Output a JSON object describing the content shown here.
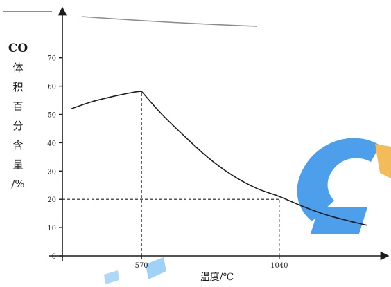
{
  "chart_data": {
    "type": "line",
    "ylabel_lines": [
      "CO",
      "体",
      "积",
      "百",
      "分",
      "含",
      "量",
      "/%"
    ],
    "xlabel": "温度/℃",
    "ylim": [
      0,
      80
    ],
    "xlim": [
      300,
      1400
    ],
    "y_ticks": [
      {
        "value": 0,
        "label": "0"
      },
      {
        "value": 10,
        "label": "10"
      },
      {
        "value": 20,
        "label": "20"
      },
      {
        "value": 30,
        "label": "30"
      },
      {
        "value": 40,
        "label": "40"
      },
      {
        "value": 50,
        "label": "50"
      },
      {
        "value": 60,
        "label": "60"
      },
      {
        "value": 70,
        "label": "70"
      }
    ],
    "x_ticks": [
      {
        "value": 570,
        "label": "570"
      },
      {
        "value": 1040,
        "label": "1040"
      }
    ],
    "series": [
      {
        "x": [
          330,
          400,
          470,
          540,
          570,
          640,
          720,
          800,
          880,
          960,
          1040,
          1120,
          1200,
          1280,
          1340
        ],
        "y": [
          52,
          54.5,
          56.3,
          57.8,
          58.2,
          50,
          42,
          34.5,
          28.5,
          24,
          21,
          17.5,
          14.5,
          12.3,
          10.8
        ]
      }
    ],
    "reference_lines": [
      {
        "x": 570,
        "from_y": 0,
        "to_y": 58.2
      },
      {
        "x": 1040,
        "from_y": 0,
        "to_y": 20
      },
      {
        "y": 20,
        "from_x": 300,
        "to_x": 1040
      }
    ],
    "grid": false
  }
}
